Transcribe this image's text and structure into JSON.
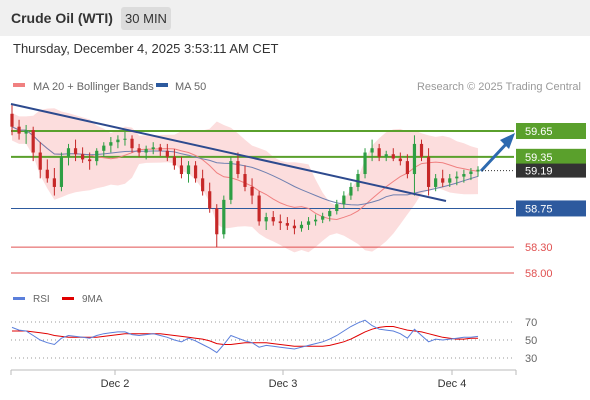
{
  "header": {
    "title": "Crude Oil (WTI)",
    "interval": "30 MIN"
  },
  "timestamp": "Thursday, December 4, 2025 3:53:11 AM CET",
  "legend": {
    "ma20_label": "MA 20 + Bollinger Bands",
    "ma20_color": "#f08080",
    "ma50_label": "MA 50",
    "ma50_color": "#2d5a9e"
  },
  "credit": "Research © 2025 Trading Central",
  "rsi_legend": {
    "rsi_label": "RSI",
    "rsi_color": "#5b7fdb",
    "ma_label": "9MA",
    "ma_color": "#e00000"
  },
  "chart_data": [
    {
      "type": "candlestick",
      "ylim": [
        57.9,
        60.65
      ],
      "x_ticks": [
        "Dec 2",
        "Dec 3",
        "Dec 4"
      ],
      "current_price": "59.19",
      "levels": [
        {
          "label": "59.65",
          "value": 59.65,
          "kind": "resistance",
          "color": "#5aa02c"
        },
        {
          "label": "59.35",
          "value": 59.35,
          "kind": "resistance",
          "color": "#5aa02c"
        },
        {
          "label": "58.75",
          "value": 58.75,
          "kind": "support",
          "color": "#2d5a9e"
        },
        {
          "label": "58.30",
          "value": 58.3,
          "kind": "support",
          "color": "#e05050"
        },
        {
          "label": "58.00",
          "value": 58.0,
          "kind": "support",
          "color": "#e05050"
        }
      ],
      "outlook": "bullish",
      "candles": [
        [
          59.85,
          59.95,
          59.6,
          59.7
        ],
        [
          59.7,
          59.78,
          59.55,
          59.62
        ],
        [
          59.62,
          59.72,
          59.5,
          59.66
        ],
        [
          59.66,
          59.7,
          59.3,
          59.4
        ],
        [
          59.4,
          59.52,
          59.1,
          59.2
        ],
        [
          59.2,
          59.32,
          59.05,
          59.1
        ],
        [
          59.1,
          59.22,
          58.9,
          59.0
        ],
        [
          59.0,
          59.4,
          58.95,
          59.35
        ],
        [
          59.35,
          59.5,
          59.25,
          59.45
        ],
        [
          59.45,
          59.55,
          59.3,
          59.38
        ],
        [
          59.38,
          59.46,
          59.28,
          59.32
        ],
        [
          59.32,
          59.4,
          59.2,
          59.3
        ],
        [
          59.3,
          59.45,
          59.25,
          59.42
        ],
        [
          59.42,
          59.52,
          59.35,
          59.48
        ],
        [
          59.48,
          59.58,
          59.4,
          59.52
        ],
        [
          59.52,
          59.6,
          59.45,
          59.55
        ],
        [
          59.55,
          59.64,
          59.48,
          59.56
        ],
        [
          59.56,
          59.6,
          59.4,
          59.45
        ],
        [
          59.45,
          59.5,
          59.35,
          59.4
        ],
        [
          59.4,
          59.48,
          59.32,
          59.44
        ],
        [
          59.44,
          59.52,
          59.38,
          59.46
        ],
        [
          59.46,
          59.5,
          59.36,
          59.42
        ],
        [
          59.42,
          59.5,
          59.3,
          59.35
        ],
        [
          59.35,
          59.44,
          59.2,
          59.25
        ],
        [
          59.25,
          59.35,
          59.1,
          59.15
        ],
        [
          59.15,
          59.3,
          59.05,
          59.25
        ],
        [
          59.25,
          59.3,
          59.05,
          59.1
        ],
        [
          59.1,
          59.2,
          58.9,
          58.95
        ],
        [
          58.95,
          59.05,
          58.7,
          58.75
        ],
        [
          58.75,
          58.8,
          58.3,
          58.45
        ],
        [
          58.45,
          58.9,
          58.4,
          58.85
        ],
        [
          58.85,
          59.35,
          58.8,
          59.3
        ],
        [
          59.3,
          59.4,
          59.1,
          59.15
        ],
        [
          59.15,
          59.25,
          58.95,
          59.0
        ],
        [
          59.0,
          59.1,
          58.8,
          58.9
        ],
        [
          58.9,
          58.95,
          58.55,
          58.6
        ],
        [
          58.6,
          58.7,
          58.5,
          58.65
        ],
        [
          58.65,
          58.72,
          58.55,
          58.6
        ],
        [
          58.6,
          58.68,
          58.5,
          58.58
        ],
        [
          58.58,
          58.65,
          58.5,
          58.55
        ],
        [
          58.55,
          58.62,
          58.45,
          58.52
        ],
        [
          58.52,
          58.6,
          58.48,
          58.56
        ],
        [
          58.56,
          58.65,
          58.5,
          58.6
        ],
        [
          58.6,
          58.68,
          58.55,
          58.62
        ],
        [
          58.62,
          58.7,
          58.58,
          58.66
        ],
        [
          58.66,
          58.75,
          58.6,
          58.72
        ],
        [
          58.72,
          58.85,
          58.68,
          58.8
        ],
        [
          58.8,
          58.95,
          58.75,
          58.9
        ],
        [
          58.9,
          59.05,
          58.85,
          59.0
        ],
        [
          59.0,
          59.2,
          58.95,
          59.15
        ],
        [
          59.15,
          59.45,
          59.1,
          59.4
        ],
        [
          59.4,
          59.55,
          59.3,
          59.45
        ],
        [
          59.45,
          59.5,
          59.3,
          59.35
        ],
        [
          59.35,
          59.42,
          59.3,
          59.38
        ],
        [
          59.38,
          59.45,
          59.3,
          59.33
        ],
        [
          59.33,
          59.4,
          59.25,
          59.3
        ],
        [
          59.3,
          59.38,
          59.1,
          59.15
        ],
        [
          59.15,
          59.6,
          58.9,
          59.5
        ],
        [
          59.5,
          59.55,
          59.3,
          59.35
        ],
        [
          59.35,
          59.45,
          58.9,
          59.0
        ],
        [
          59.0,
          59.15,
          58.95,
          59.1
        ],
        [
          59.1,
          59.2,
          59.0,
          59.05
        ],
        [
          59.05,
          59.15,
          59.0,
          59.1
        ],
        [
          59.1,
          59.18,
          59.02,
          59.12
        ],
        [
          59.12,
          59.2,
          59.05,
          59.15
        ],
        [
          59.15,
          59.22,
          59.08,
          59.18
        ],
        [
          59.18,
          59.24,
          59.12,
          59.2
        ]
      ]
    },
    {
      "type": "line",
      "title": "RSI",
      "ylim": [
        22,
        78
      ],
      "y_ticks": [
        70,
        50,
        30
      ],
      "series": [
        {
          "name": "RSI",
          "values": [
            64,
            61,
            60,
            55,
            50,
            47,
            45,
            52,
            55,
            54,
            53,
            52,
            55,
            57,
            58,
            59,
            59,
            56,
            55,
            56,
            57,
            55,
            53,
            50,
            48,
            52,
            49,
            45,
            41,
            36,
            45,
            55,
            52,
            49,
            47,
            42,
            44,
            43,
            42,
            41,
            40,
            42,
            44,
            46,
            48,
            51,
            55,
            60,
            65,
            69,
            72,
            66,
            62,
            61,
            60,
            57,
            52,
            62,
            55,
            48,
            51,
            50,
            51,
            52,
            53,
            53,
            54
          ]
        },
        {
          "name": "9MA",
          "values": [
            60,
            60,
            60,
            59,
            58,
            57,
            55,
            54,
            53,
            53,
            53,
            53,
            53,
            54,
            55,
            56,
            57,
            57,
            57,
            57,
            57,
            57,
            56,
            55,
            54,
            53,
            52,
            51,
            49,
            46,
            45,
            45,
            46,
            47,
            47,
            47,
            47,
            46,
            45,
            44,
            43,
            43,
            43,
            43,
            43,
            44,
            46,
            48,
            51,
            55,
            59,
            62,
            64,
            65,
            65,
            63,
            61,
            60,
            59,
            57,
            55,
            53,
            52,
            51,
            51,
            52,
            52
          ]
        }
      ]
    }
  ]
}
